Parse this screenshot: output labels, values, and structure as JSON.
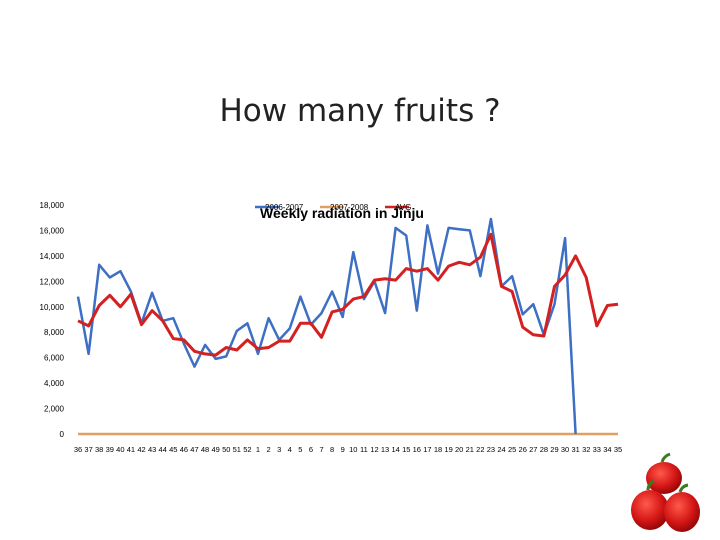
{
  "slide": {
    "title": "How many fruits ?"
  },
  "colors": {
    "series_2006": "#3d6fc4",
    "series_2007": "#e0a060",
    "series_avg": "#d42020"
  },
  "chart_data": {
    "type": "line",
    "title": "Weekly radiation in Jinju",
    "ylim": [
      0,
      18000
    ],
    "yticks": [
      "0",
      "2,000",
      "4,000",
      "6,000",
      "8,000",
      "10,000",
      "12,000",
      "14,000",
      "16,000",
      "18,000"
    ],
    "grid": false,
    "legend_position": "top",
    "categories": [
      "36",
      "37",
      "38",
      "39",
      "40",
      "41",
      "42",
      "43",
      "44",
      "45",
      "46",
      "47",
      "48",
      "49",
      "50",
      "51",
      "52",
      "1",
      "2",
      "3",
      "4",
      "5",
      "6",
      "7",
      "8",
      "9",
      "10",
      "11",
      "12",
      "13",
      "14",
      "15",
      "16",
      "17",
      "18",
      "19",
      "20",
      "21",
      "22",
      "23",
      "24",
      "25",
      "26",
      "27",
      "28",
      "29",
      "30",
      "31",
      "32",
      "33",
      "34",
      "35"
    ],
    "series": [
      {
        "name": "2006-2007",
        "values": [
          10800,
          6300,
          13300,
          12300,
          12800,
          11200,
          8700,
          11100,
          8900,
          9100,
          7100,
          5300,
          7000,
          5900,
          6100,
          8100,
          8700,
          6300,
          9100,
          7400,
          8300,
          10800,
          8600,
          9500,
          11200,
          9200,
          14300,
          10600,
          12000,
          9500,
          16200,
          15600,
          9700,
          16400,
          12600,
          16200,
          16100,
          16000,
          12400,
          16900,
          11600,
          12400,
          9400,
          10200,
          7800,
          10200,
          15400,
          0,
          null,
          null,
          null,
          null
        ]
      },
      {
        "name": "2007-2008",
        "values": [
          0,
          0,
          0,
          0,
          0,
          0,
          0,
          0,
          0,
          0,
          0,
          0,
          0,
          0,
          0,
          0,
          0,
          0,
          0,
          0,
          0,
          0,
          0,
          0,
          0,
          0,
          0,
          0,
          0,
          0,
          0,
          0,
          0,
          0,
          0,
          0,
          0,
          0,
          0,
          0,
          0,
          0,
          0,
          0,
          0,
          0,
          0,
          0,
          0,
          0,
          0,
          0
        ]
      },
      {
        "name": "AVG",
        "values": [
          8900,
          8500,
          10100,
          10900,
          10000,
          11000,
          8600,
          9700,
          8900,
          7500,
          7400,
          6500,
          6300,
          6200,
          6800,
          6600,
          7400,
          6700,
          6800,
          7300,
          7300,
          8700,
          8700,
          7600,
          9600,
          9800,
          10600,
          10800,
          12100,
          12200,
          12100,
          13000,
          12800,
          13000,
          12100,
          13200,
          13500,
          13300,
          13900,
          15700,
          11600,
          11200,
          8400,
          7800,
          7700,
          11600,
          12500,
          14000,
          12300,
          8500,
          10100,
          10200
        ]
      }
    ]
  }
}
